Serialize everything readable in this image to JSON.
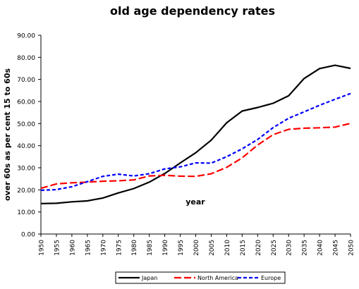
{
  "chart_data": {
    "type": "line",
    "title": "old age dependency rates",
    "xlabel": "year",
    "ylabel": "over 60s as per cent 15 to 60s",
    "x": [
      1950,
      1955,
      1960,
      1965,
      1970,
      1975,
      1980,
      1985,
      1990,
      1995,
      2000,
      2005,
      2010,
      2015,
      2020,
      2025,
      2030,
      2035,
      2040,
      2045,
      2050
    ],
    "xticks": [
      "1950",
      "1955",
      "1960",
      "1965",
      "1970",
      "1975",
      "1980",
      "1985",
      "1990",
      "1995",
      "2000",
      "2005",
      "2010",
      "2015",
      "2020",
      "2025",
      "2030",
      "2035",
      "2040",
      "2045",
      "2050"
    ],
    "yticks": [
      "0.00",
      "10.00",
      "20.00",
      "30.00",
      "40.00",
      "50.00",
      "60.00",
      "70.00",
      "80.00",
      "90.00"
    ],
    "ylim": [
      0,
      90
    ],
    "xlim": [
      1950,
      2050
    ],
    "grid": false,
    "legend_position": "bottom-center",
    "series": [
      {
        "name": "Japan",
        "color": "#000000",
        "style": "solid",
        "values": [
          13.8,
          13.9,
          14.6,
          15.0,
          16.3,
          18.6,
          20.6,
          23.5,
          27.4,
          32.2,
          36.8,
          42.5,
          50.4,
          55.7,
          57.3,
          59.2,
          62.6,
          70.4,
          74.9,
          76.4,
          75.0
        ]
      },
      {
        "name": "North America",
        "color": "#ff0000",
        "style": "dashed",
        "values": [
          20.7,
          22.7,
          23.2,
          23.5,
          23.9,
          24.1,
          24.5,
          26.3,
          26.6,
          26.2,
          26.1,
          27.3,
          30.2,
          34.5,
          40.3,
          45.0,
          47.4,
          47.9,
          48.1,
          48.4,
          50.1
        ]
      },
      {
        "name": "Europe",
        "color": "#0000ff",
        "style": "dotted",
        "values": [
          19.8,
          20.1,
          21.4,
          23.7,
          26.1,
          27.1,
          26.3,
          27.3,
          29.5,
          30.4,
          32.2,
          32.1,
          35.0,
          38.6,
          42.8,
          48.2,
          52.4,
          55.3,
          58.3,
          61.0,
          63.6
        ]
      }
    ]
  }
}
